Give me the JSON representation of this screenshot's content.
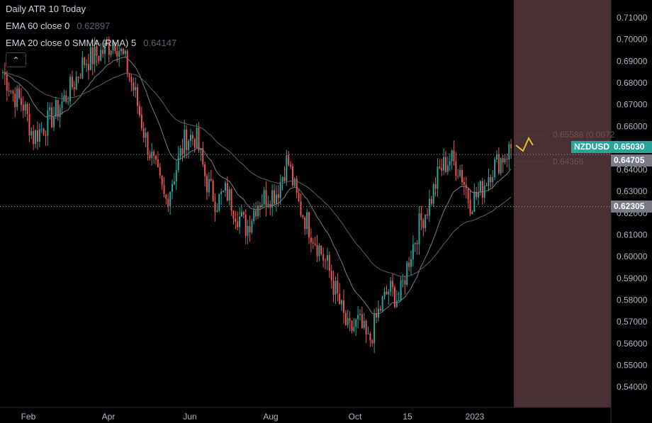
{
  "legend": {
    "title": "Daily ATR 10 Today",
    "ema60_label": "EMA 60 close 0",
    "ema60_value": "0.62897",
    "ema20_label": "EMA 20 close 0 SMMA (RMA) 5",
    "ema20_value": "0.64147"
  },
  "symbol": "NZDUSD",
  "price_tags": {
    "last": "0.65030",
    "line1": "0.64705",
    "line2": "0.62305"
  },
  "annotations": {
    "upper": "0.65588 (0.0072",
    "lower": "0.64356"
  },
  "colors": {
    "up": "#26a69a",
    "down": "#ef5350",
    "shade": "#4a2f33",
    "ema": "#787b86",
    "arrow": "#e3c02a"
  },
  "chart_data": {
    "type": "candlestick",
    "title": "NZDUSD Daily",
    "ylim": [
      0.535,
      0.715
    ],
    "yticks": [
      "0.71000",
      "0.70000",
      "0.69000",
      "0.68000",
      "0.67000",
      "0.66000",
      "0.65000",
      "0.64000",
      "0.63000",
      "0.62000",
      "0.61000",
      "0.60000",
      "0.59000",
      "0.58000",
      "0.57000",
      "0.56000",
      "0.55000",
      "0.54000"
    ],
    "xticks": [
      "Feb",
      "Apr",
      "Jun",
      "Aug",
      "Oct",
      "15",
      "2023"
    ],
    "close_samples": [
      0.685,
      0.675,
      0.67,
      0.655,
      0.66,
      0.665,
      0.672,
      0.68,
      0.69,
      0.692,
      0.695,
      0.7,
      0.69,
      0.675,
      0.655,
      0.64,
      0.625,
      0.64,
      0.655,
      0.655,
      0.635,
      0.625,
      0.63,
      0.62,
      0.613,
      0.625,
      0.628,
      0.63,
      0.645,
      0.625,
      0.615,
      0.605,
      0.595,
      0.58,
      0.565,
      0.57,
      0.56,
      0.575,
      0.585,
      0.58,
      0.6,
      0.615,
      0.625,
      0.64,
      0.645,
      0.64,
      0.625,
      0.63,
      0.64,
      0.645,
      0.65
    ]
  }
}
